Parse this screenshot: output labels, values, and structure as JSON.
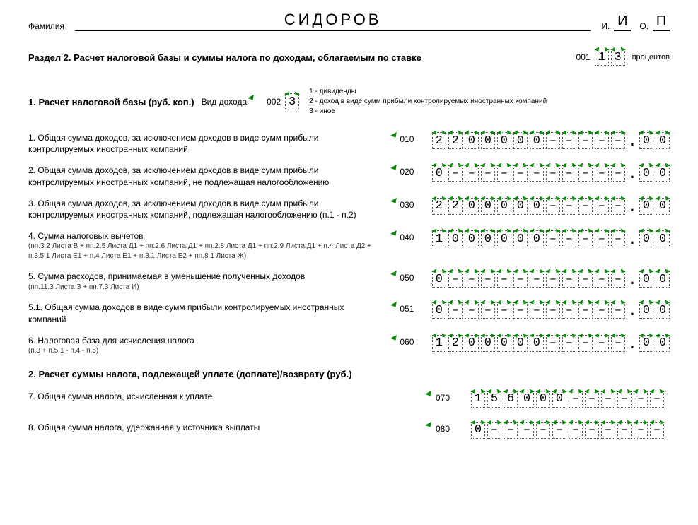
{
  "header": {
    "surname_label": "Фамилия",
    "surname": "СИДОРОВ",
    "i_label": "И.",
    "i_value": "И",
    "o_label": "О.",
    "o_value": "П"
  },
  "section": {
    "title": "Раздел 2. Расчет налоговой базы и суммы налога по доходам, облагаемым по ставке",
    "rate_code_label": "001",
    "rate_digits": [
      "1",
      "3"
    ],
    "percent_label": "процентов"
  },
  "sub1": {
    "title": "1. Расчет налоговой базы (руб. коп.)",
    "income_type_label": "Вид дохода",
    "income_type_code_label": "002",
    "income_type_digits": [
      "3"
    ],
    "legend1": "1 - дивиденды",
    "legend2": "2 - доход в виде сумм прибыли контролируемых иностранных компаний",
    "legend3": "3 - иное"
  },
  "lines": [
    {
      "desc": "1. Общая сумма доходов, за исключением доходов в виде сумм прибыли контролируемых иностранных компаний",
      "code": "010",
      "int": [
        "2",
        "2",
        "0",
        "0",
        "0",
        "0",
        "0",
        "–",
        "–",
        "–",
        "–",
        "–"
      ],
      "frac": [
        "0",
        "0"
      ]
    },
    {
      "desc": "2. Общая сумма доходов, за исключением доходов в виде сумм прибыли контролируемых иностранных компаний, не подлежащая налогообложению",
      "code": "020",
      "int": [
        "0",
        "–",
        "–",
        "–",
        "–",
        "–",
        "–",
        "–",
        "–",
        "–",
        "–",
        "–"
      ],
      "frac": [
        "0",
        "0"
      ]
    },
    {
      "desc": "3. Общая сумма доходов, за исключением доходов в виде сумм прибыли контролируемых иностранных компаний, подлежащая налогообложению (п.1 - п.2)",
      "code": "030",
      "int": [
        "2",
        "2",
        "0",
        "0",
        "0",
        "0",
        "0",
        "–",
        "–",
        "–",
        "–",
        "–"
      ],
      "frac": [
        "0",
        "0"
      ]
    },
    {
      "desc": "4. Сумма налоговых вычетов",
      "sub": "(пп.3.2 Листа В + пп.2.5 Листа Д1 + пп.2.6 Листа Д1 + пп.2.8 Листа Д1 + пп.2.9 Листа Д1 + п.4 Листа Д2 + п.3.5.1 Листа Е1 + п.4 Листа Е1 + п.3.1 Листа Е2 + пп.8.1 Листа Ж)",
      "code": "040",
      "int": [
        "1",
        "0",
        "0",
        "0",
        "0",
        "0",
        "0",
        "–",
        "–",
        "–",
        "–",
        "–"
      ],
      "frac": [
        "0",
        "0"
      ]
    },
    {
      "desc": "5. Сумма расходов, принимаемая в уменьшение полученных доходов",
      "sub": "(пп.11.3 Листа З + пп.7.3 Листа И)",
      "code": "050",
      "int": [
        "0",
        "–",
        "–",
        "–",
        "–",
        "–",
        "–",
        "–",
        "–",
        "–",
        "–",
        "–"
      ],
      "frac": [
        "0",
        "0"
      ]
    },
    {
      "desc": "5.1. Общая сумма доходов в виде сумм прибыли контролируемых иностранных компаний",
      "code": "051",
      "int": [
        "0",
        "–",
        "–",
        "–",
        "–",
        "–",
        "–",
        "–",
        "–",
        "–",
        "–",
        "–"
      ],
      "frac": [
        "0",
        "0"
      ]
    },
    {
      "desc": "6. Налоговая база для исчисления налога",
      "sub": "(п.3 + п.5.1 - п.4 - п.5)",
      "code": "060",
      "int": [
        "1",
        "2",
        "0",
        "0",
        "0",
        "0",
        "0",
        "–",
        "–",
        "–",
        "–",
        "–"
      ],
      "frac": [
        "0",
        "0"
      ]
    }
  ],
  "sub2": {
    "title": "2. Расчет суммы налога, подлежащей уплате (доплате)/возврату (руб.)"
  },
  "lines2": [
    {
      "desc": "7. Общая сумма налога, исчисленная к уплате",
      "code": "070",
      "int": [
        "1",
        "5",
        "6",
        "0",
        "0",
        "0",
        "–",
        "–",
        "–",
        "–",
        "–",
        "–"
      ]
    },
    {
      "desc": "8. Общая сумма налога, удержанная у источника выплаты",
      "code": "080",
      "int": [
        "0",
        "–",
        "–",
        "–",
        "–",
        "–",
        "–",
        "–",
        "–",
        "–",
        "–",
        "–"
      ]
    }
  ],
  "colors": {
    "tick_green": "#0a8a0a",
    "border_gray": "#555555",
    "text": "#000000",
    "background": "#ffffff"
  }
}
